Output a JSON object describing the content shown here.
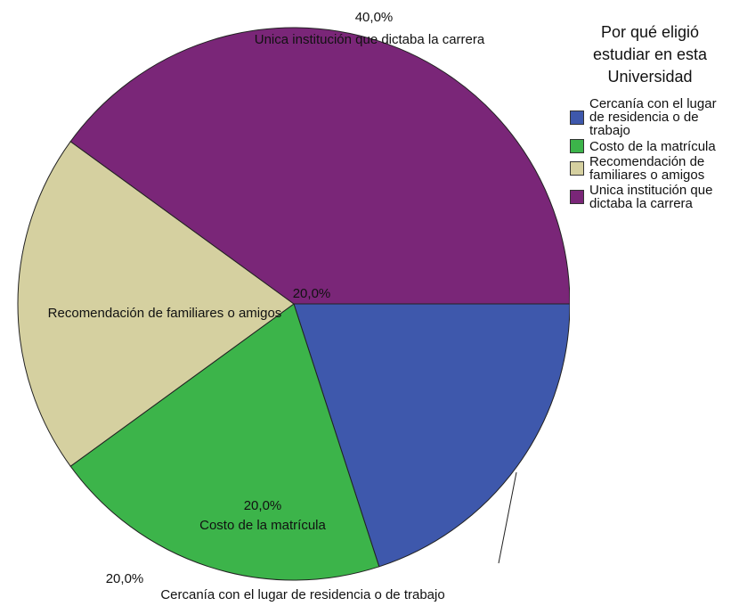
{
  "chart_data": {
    "type": "pie",
    "title": "Por qué eligió estudiar en esta Universidad",
    "categories": [
      "Cercanía con el lugar de residencia o de trabajo",
      "Costo de la matrícula",
      "Recomendación de familiares o amigos",
      "Unica institución que dictaba la carrera"
    ],
    "values": [
      20,
      20,
      20,
      40
    ],
    "value_labels": [
      "20,0%",
      "20,0%",
      "20,0%",
      "40,0%"
    ],
    "colors": [
      "#3e58ac",
      "#3cb44a",
      "#d5d0a0",
      "#7a2678"
    ],
    "legend": "right"
  }
}
